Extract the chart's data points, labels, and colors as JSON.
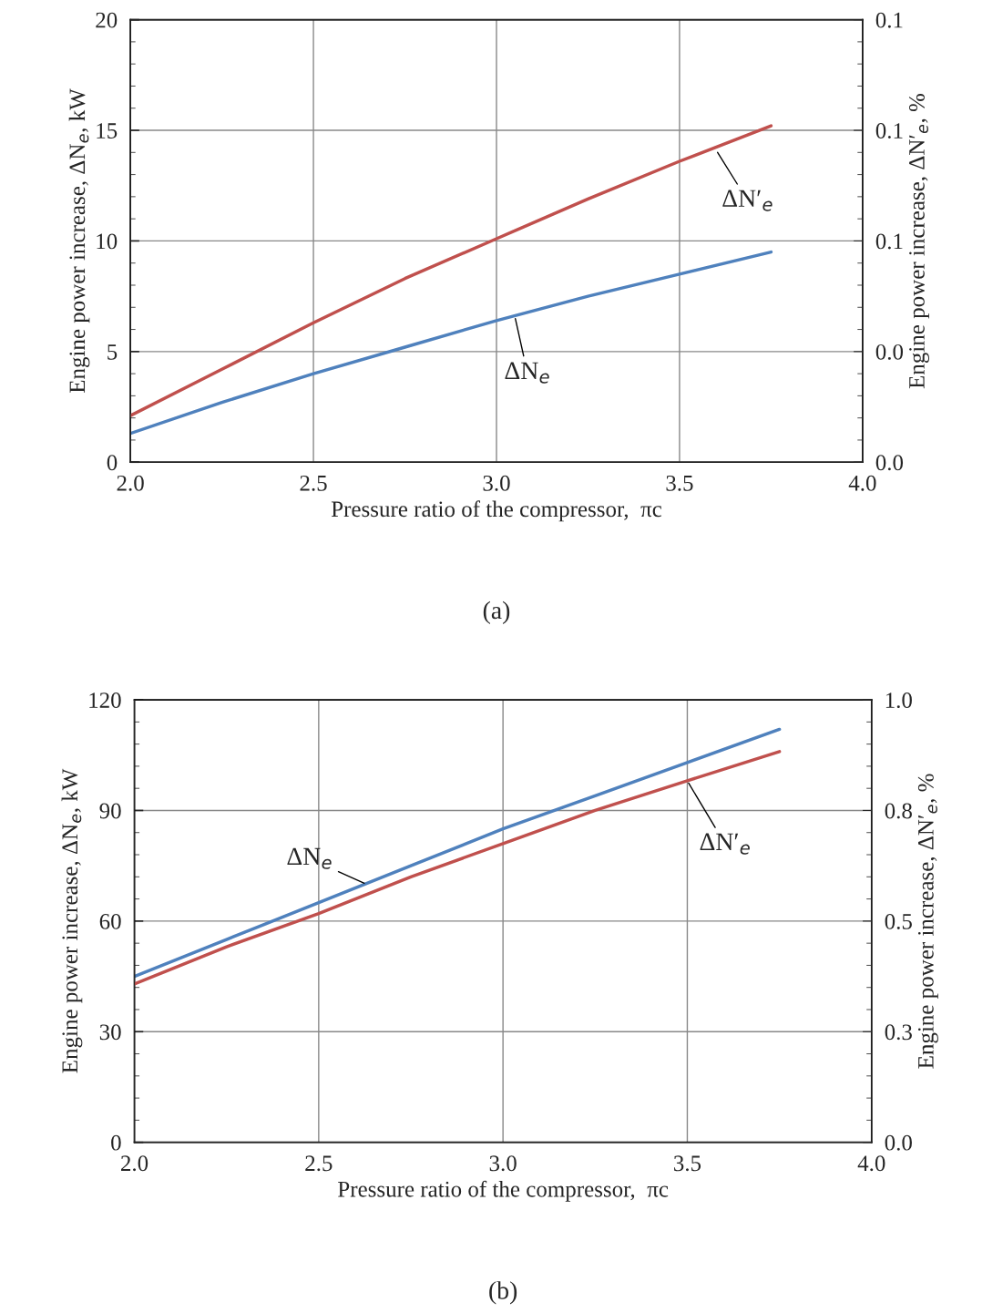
{
  "chart_data": [
    {
      "type": "line",
      "x": [
        2.0,
        2.25,
        2.5,
        2.75,
        3.0,
        3.25,
        3.5,
        3.75
      ],
      "xlabel": "Pressure ratio of the compressor,  πc",
      "ylabel": "Engine power increase, ΔN$_{e}$, kW",
      "y2label": "Engine power increase, ΔN′$_{e}$, %",
      "xlim": [
        2.0,
        4.0
      ],
      "xticks": [
        {
          "value": 2.0,
          "label": "2.0"
        },
        {
          "value": 2.5,
          "label": "2.5"
        },
        {
          "value": 3.0,
          "label": "3.0"
        },
        {
          "value": 3.5,
          "label": "3.5"
        },
        {
          "value": 4.0,
          "label": "4.0"
        }
      ],
      "ylim": [
        0,
        20
      ],
      "yticks": [
        0,
        5,
        10,
        15,
        20
      ],
      "y2lim": [
        0,
        0.1
      ],
      "y2ticks": [
        {
          "value": 0,
          "label": "0.0"
        },
        {
          "value": 0.025,
          "label": "0.0"
        },
        {
          "value": 0.05,
          "label": "0.1"
        },
        {
          "value": 0.075,
          "label": "0.1"
        },
        {
          "value": 0.1,
          "label": "0.1"
        }
      ],
      "grid": true,
      "legend": false,
      "marker": "none",
      "line_style": "solid",
      "series": [
        {
          "color": "#4f81bd",
          "values": [
            1.3,
            2.7,
            4.0,
            5.2,
            6.4,
            7.5,
            8.5,
            9.5
          ]
        },
        {
          "color": "#c0504d",
          "axis": "y2",
          "values": [
            0.0105,
            0.021,
            0.0315,
            0.0415,
            0.0505,
            0.0595,
            0.068,
            0.076
          ]
        }
      ],
      "annotations": [
        {
          "text": "ΔN′$_{e}$",
          "x": 3.6,
          "y": 14.1
        },
        {
          "text": "ΔN$_{e}$",
          "x": 3.05,
          "y": 6.6
        },
        "(a)"
      ]
    },
    {
      "type": "line",
      "x": [
        2.0,
        2.25,
        2.5,
        2.75,
        3.0,
        3.25,
        3.5,
        3.75
      ],
      "xlabel": "Pressure ratio of the compressor,  πc",
      "ylabel": "Engine power increase, ΔN$_{e}$, kW",
      "y2label": "Engine power increase, ΔN′$_{e}$, %",
      "xlim": [
        2.0,
        4.0
      ],
      "xticks": [
        {
          "value": 2.0,
          "label": "2.0"
        },
        {
          "value": 2.5,
          "label": "2.5"
        },
        {
          "value": 3.0,
          "label": "3.0"
        },
        {
          "value": 3.5,
          "label": "3.5"
        },
        {
          "value": 4.0,
          "label": "4.0"
        }
      ],
      "ylim": [
        0,
        120
      ],
      "yticks": [
        0,
        30,
        60,
        90,
        120
      ],
      "y2lim": [
        0,
        1.0
      ],
      "y2ticks": [
        {
          "value": 0,
          "label": "0.0"
        },
        {
          "value": 0.25,
          "label": "0.3"
        },
        {
          "value": 0.5,
          "label": "0.5"
        },
        {
          "value": 0.75,
          "label": "0.8"
        },
        {
          "value": 1.0,
          "label": "1.0"
        }
      ],
      "grid": true,
      "legend": false,
      "marker": "none",
      "line_style": "solid",
      "series": [
        {
          "color": "#4f81bd",
          "values": [
            45,
            55,
            65,
            75,
            85,
            94,
            103,
            112
          ]
        },
        {
          "color": "#c0504d",
          "axis": "y2",
          "values": [
            0.358,
            0.442,
            0.517,
            0.6,
            0.675,
            0.75,
            0.817,
            0.883
          ]
        }
      ],
      "annotations": [
        {
          "text": "ΔN$_{e}$",
          "x": 2.63,
          "y": 70
        },
        {
          "text": "ΔN′$_{e}$",
          "x": 3.5,
          "y": 98
        },
        "(b)"
      ]
    }
  ]
}
